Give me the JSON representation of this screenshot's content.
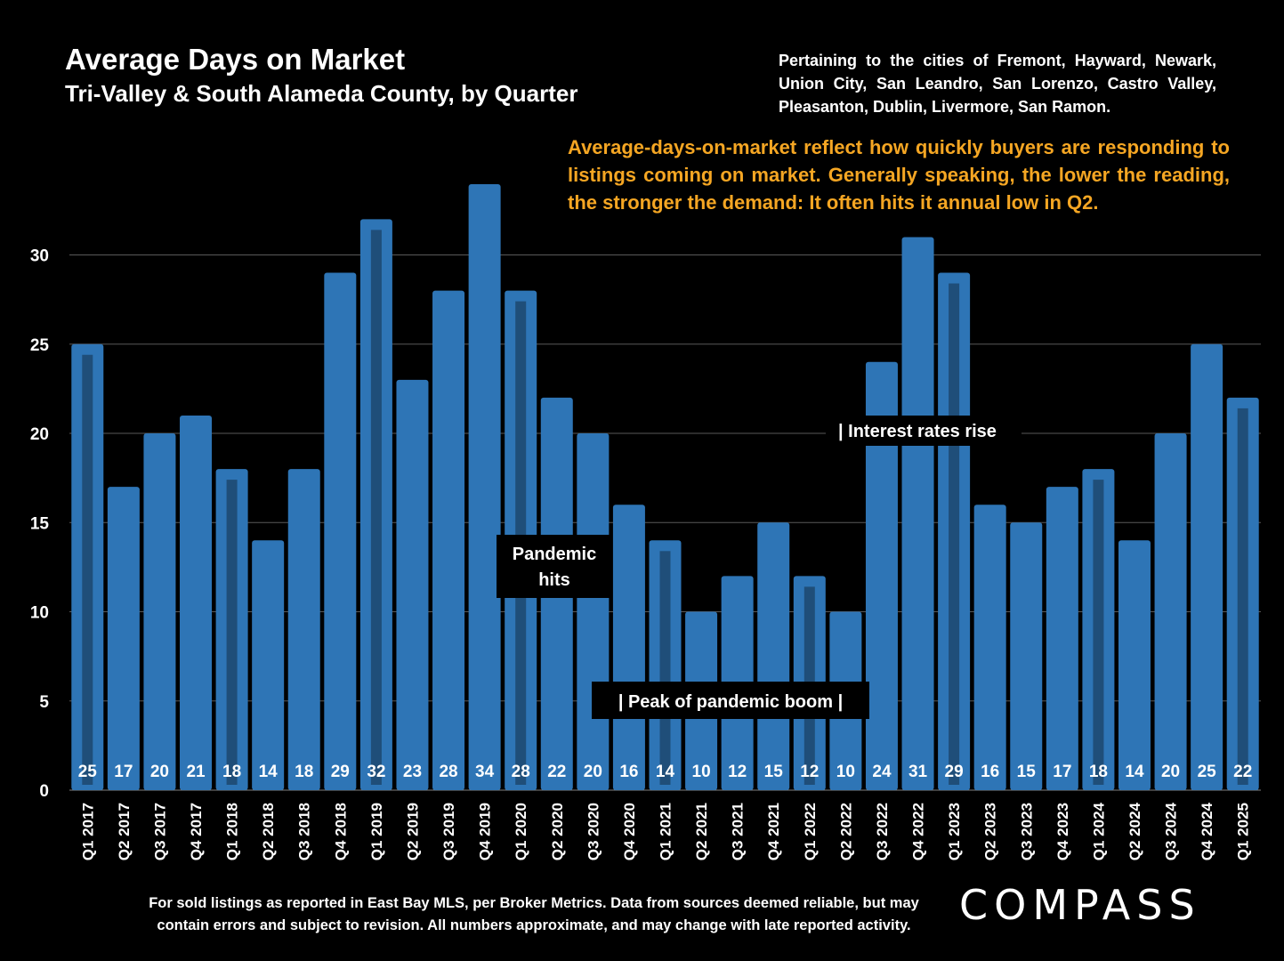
{
  "header": {
    "title": "Average Days on Market",
    "subtitle": "Tri-Valley & South Alameda County, by Quarter",
    "cities_note": "Pertaining to the cities of Fremont, Hayward, Newark, Union City, San Leandro, San Lorenzo, Castro Valley, Pleasanton, Dublin, Livermore, San Ramon.",
    "explanation": "Average-days-on-market reflect how quickly buyers are responding to listings coming on market. Generally speaking, the lower the reading, the stronger the demand:  It often hits it annual low in Q2."
  },
  "footer": {
    "source_line1": "For sold listings as reported in East Bay MLS, per Broker Metrics. Data from sources deemed reliable, but may",
    "source_line2": "contain errors and subject to revision. All numbers approximate, and may change with late reported activity.",
    "logo": "COMPASS"
  },
  "colors": {
    "background": "#000000",
    "bar": "#2e75b6",
    "q1_marker": "#1f4e79",
    "gridline": "#595959",
    "note_text": "#f5a623",
    "text": "#ffffff"
  },
  "annotations": [
    {
      "text": "Pandemic",
      "text2": "hits",
      "category": "Q1 2020"
    },
    {
      "text": "| Peak of pandemic boom |",
      "category": "Q2 2021"
    },
    {
      "text": "| Interest rates rise",
      "category": "Q4 2022"
    }
  ],
  "chart_data": {
    "type": "bar",
    "categories": [
      "Q1 2017",
      "Q2 2017",
      "Q3 2017",
      "Q4 2017",
      "Q1 2018",
      "Q2 2018",
      "Q3 2018",
      "Q4 2018",
      "Q1 2019",
      "Q2 2019",
      "Q3 2019",
      "Q4 2019",
      "Q1 2020",
      "Q2 2020",
      "Q3 2020",
      "Q4 2020",
      "Q1 2021",
      "Q2 2021",
      "Q3 2021",
      "Q4 2021",
      "Q1 2022",
      "Q2 2022",
      "Q3 2022",
      "Q4 2022",
      "Q1 2023",
      "Q2 2023",
      "Q3 2023",
      "Q4 2023",
      "Q1 2024",
      "Q2 2024",
      "Q3 2024",
      "Q4 2024",
      "Q1 2025"
    ],
    "values": [
      25,
      17,
      20,
      21,
      18,
      14,
      18,
      29,
      32,
      23,
      28,
      34,
      28,
      22,
      20,
      16,
      14,
      10,
      12,
      15,
      12,
      10,
      24,
      31,
      29,
      16,
      15,
      17,
      18,
      14,
      20,
      25,
      22
    ],
    "yticks": [
      0,
      5,
      10,
      15,
      20,
      25,
      30
    ],
    "ylim": [
      0,
      34
    ],
    "q1_highlight": true,
    "grid": true
  }
}
